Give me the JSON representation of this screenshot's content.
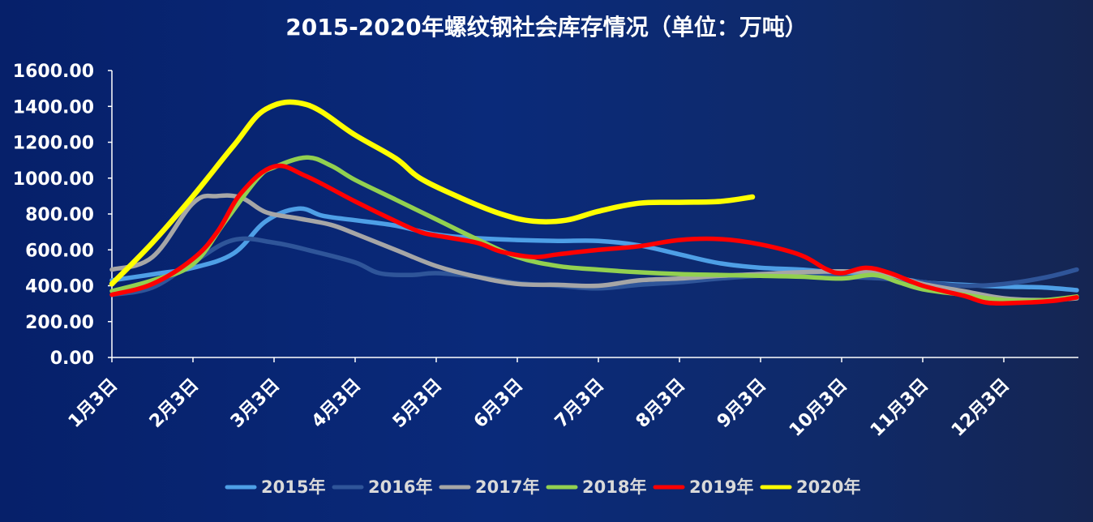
{
  "chart_data": {
    "type": "line",
    "title": "2015-2020年螺纹钢社会库存情况（单位：万吨）",
    "xlabel": "",
    "ylabel": "",
    "ylim": [
      0,
      1600
    ],
    "yticks": [
      "0.00",
      "200.00",
      "400.00",
      "600.00",
      "800.00",
      "1000.00",
      "1200.00",
      "1400.00",
      "1600.00"
    ],
    "categories": [
      "1月3日",
      "2月3日",
      "3月3日",
      "4月3日",
      "5月3日",
      "6月3日",
      "7月3日",
      "8月3日",
      "9月3日",
      "10月3日",
      "11月3日",
      "12月3日"
    ],
    "x_domain": [
      1,
      12.9
    ],
    "legend_position": "bottom",
    "grid": false,
    "series": [
      {
        "name": "2015年",
        "color": "#4e9fe6",
        "points": [
          [
            1,
            430
          ],
          [
            1.6,
            470
          ],
          [
            2,
            500
          ],
          [
            2.5,
            580
          ],
          [
            2.9,
            760
          ],
          [
            3.3,
            830
          ],
          [
            3.6,
            790
          ],
          [
            4,
            765
          ],
          [
            4.5,
            735
          ],
          [
            5,
            685
          ],
          [
            5.5,
            665
          ],
          [
            6,
            655
          ],
          [
            6.5,
            650
          ],
          [
            7,
            650
          ],
          [
            7.5,
            625
          ],
          [
            8,
            575
          ],
          [
            8.5,
            525
          ],
          [
            9,
            500
          ],
          [
            9.5,
            490
          ],
          [
            10,
            470
          ],
          [
            10.5,
            455
          ],
          [
            11,
            420
          ],
          [
            11.5,
            405
          ],
          [
            12,
            395
          ],
          [
            12.5,
            390
          ],
          [
            12.9,
            375
          ]
        ]
      },
      {
        "name": "2016年",
        "color": "#2f5599",
        "points": [
          [
            1,
            350
          ],
          [
            1.5,
            390
          ],
          [
            2,
            530
          ],
          [
            2.5,
            655
          ],
          [
            3,
            640
          ],
          [
            3.5,
            590
          ],
          [
            4,
            530
          ],
          [
            4.3,
            470
          ],
          [
            4.7,
            460
          ],
          [
            5,
            470
          ],
          [
            5.5,
            450
          ],
          [
            6,
            415
          ],
          [
            6.5,
            400
          ],
          [
            7,
            385
          ],
          [
            7.5,
            405
          ],
          [
            8,
            420
          ],
          [
            8.5,
            440
          ],
          [
            9,
            455
          ],
          [
            9.5,
            460
          ],
          [
            10,
            450
          ],
          [
            10.5,
            440
          ],
          [
            11,
            420
          ],
          [
            11.5,
            400
          ],
          [
            12,
            410
          ],
          [
            12.5,
            445
          ],
          [
            12.9,
            490
          ]
        ]
      },
      {
        "name": "2017年",
        "color": "#a6a6a6",
        "points": [
          [
            1,
            490
          ],
          [
            1.5,
            560
          ],
          [
            2,
            860
          ],
          [
            2.3,
            900
          ],
          [
            2.6,
            890
          ],
          [
            2.9,
            810
          ],
          [
            3.3,
            775
          ],
          [
            3.7,
            740
          ],
          [
            4,
            690
          ],
          [
            4.5,
            600
          ],
          [
            5,
            510
          ],
          [
            5.5,
            450
          ],
          [
            6,
            410
          ],
          [
            6.5,
            405
          ],
          [
            7,
            400
          ],
          [
            7.5,
            430
          ],
          [
            8,
            440
          ],
          [
            8.5,
            455
          ],
          [
            9,
            465
          ],
          [
            9.5,
            475
          ],
          [
            10,
            480
          ],
          [
            10.5,
            470
          ],
          [
            11,
            410
          ],
          [
            11.5,
            370
          ],
          [
            12,
            330
          ],
          [
            12.5,
            320
          ],
          [
            12.9,
            330
          ]
        ]
      },
      {
        "name": "2018年",
        "color": "#92d050",
        "points": [
          [
            1,
            370
          ],
          [
            1.5,
            430
          ],
          [
            2,
            520
          ],
          [
            2.4,
            760
          ],
          [
            2.8,
            1000
          ],
          [
            3,
            1060
          ],
          [
            3.4,
            1115
          ],
          [
            3.7,
            1070
          ],
          [
            4,
            990
          ],
          [
            4.5,
            880
          ],
          [
            5,
            770
          ],
          [
            5.5,
            660
          ],
          [
            6,
            560
          ],
          [
            6.5,
            510
          ],
          [
            7,
            490
          ],
          [
            7.5,
            475
          ],
          [
            8,
            465
          ],
          [
            8.5,
            460
          ],
          [
            9,
            455
          ],
          [
            9.5,
            450
          ],
          [
            10,
            440
          ],
          [
            10.4,
            460
          ],
          [
            10.7,
            420
          ],
          [
            11,
            380
          ],
          [
            11.5,
            350
          ],
          [
            12,
            320
          ],
          [
            12.5,
            320
          ],
          [
            12.9,
            340
          ]
        ]
      },
      {
        "name": "2019年",
        "color": "#ff0000",
        "points": [
          [
            1,
            350
          ],
          [
            1.5,
            410
          ],
          [
            2,
            550
          ],
          [
            2.3,
            700
          ],
          [
            2.6,
            920
          ],
          [
            3,
            1065
          ],
          [
            3.4,
            1010
          ],
          [
            4,
            870
          ],
          [
            4.5,
            760
          ],
          [
            4.8,
            700
          ],
          [
            5,
            680
          ],
          [
            5.5,
            640
          ],
          [
            5.8,
            590
          ],
          [
            6.2,
            560
          ],
          [
            6.5,
            575
          ],
          [
            7,
            600
          ],
          [
            7.5,
            620
          ],
          [
            8,
            655
          ],
          [
            8.5,
            660
          ],
          [
            9,
            630
          ],
          [
            9.5,
            570
          ],
          [
            9.8,
            495
          ],
          [
            10,
            470
          ],
          [
            10.3,
            500
          ],
          [
            10.6,
            470
          ],
          [
            11,
            400
          ],
          [
            11.5,
            345
          ],
          [
            11.8,
            305
          ],
          [
            12.2,
            305
          ],
          [
            12.6,
            315
          ],
          [
            12.9,
            335
          ]
        ]
      },
      {
        "name": "2020年",
        "color": "#ffff00",
        "points": [
          [
            1,
            410
          ],
          [
            1.5,
            640
          ],
          [
            2,
            900
          ],
          [
            2.5,
            1180
          ],
          [
            2.9,
            1385
          ],
          [
            3.4,
            1410
          ],
          [
            4,
            1240
          ],
          [
            4.5,
            1110
          ],
          [
            4.8,
            1000
          ],
          [
            5.3,
            890
          ],
          [
            5.8,
            800
          ],
          [
            6.2,
            760
          ],
          [
            6.6,
            765
          ],
          [
            7,
            815
          ],
          [
            7.5,
            860
          ],
          [
            8,
            865
          ],
          [
            8.5,
            870
          ],
          [
            8.9,
            895
          ]
        ]
      }
    ]
  }
}
